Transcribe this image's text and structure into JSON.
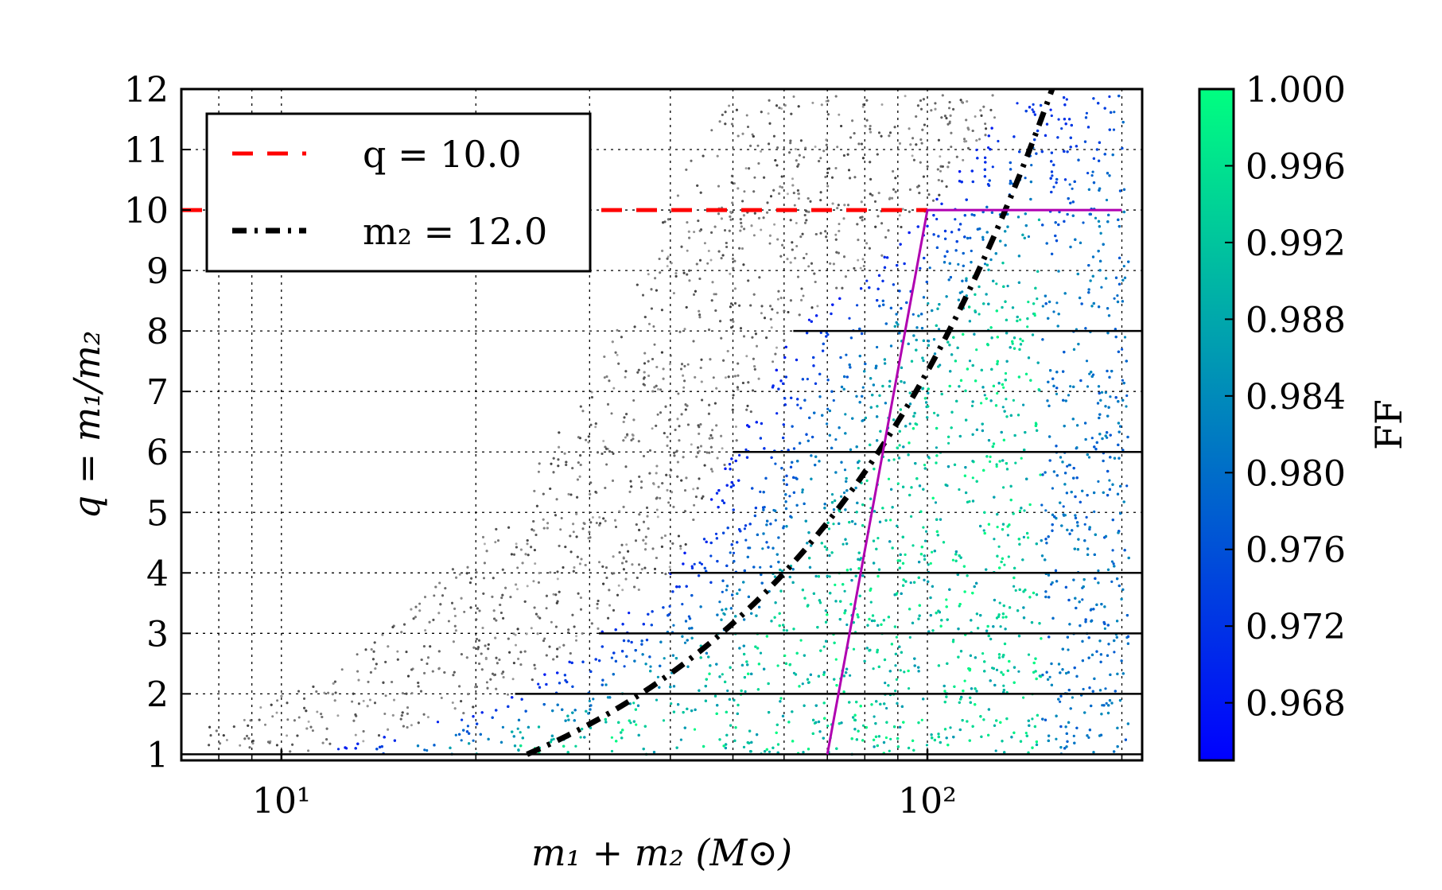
{
  "chart_data": {
    "type": "scatter",
    "title": "",
    "xlabel": "m₁ + m₂ (M⊙)",
    "ylabel": "q = m₁/m₂",
    "x_scale": "log",
    "xlim": [
      7,
      215
    ],
    "ylim": [
      0.9,
      12
    ],
    "x_ticks": [
      {
        "value": 10,
        "label": "10¹"
      },
      {
        "value": 100,
        "label": "10²"
      }
    ],
    "y_ticks": [
      1,
      2,
      3,
      4,
      5,
      6,
      7,
      8,
      9,
      10,
      11,
      12
    ],
    "grid": true,
    "legend": {
      "placement": "top-left",
      "entries": [
        {
          "label": "q = 10.0",
          "color": "#ff0000",
          "style": "dashed"
        },
        {
          "label": "m₂ = 12.0",
          "color": "#000000",
          "style": "dash-dot"
        }
      ]
    },
    "colorbar": {
      "label": "FF",
      "min": 0.965,
      "max": 1.0,
      "colormap": "winter",
      "colors": {
        "low": "#0000ff",
        "high": "#00ff80"
      },
      "ticks": [
        "1.000",
        "0.996",
        "0.992",
        "0.988",
        "0.984",
        "0.980",
        "0.976",
        "0.972",
        "0.968"
      ]
    },
    "reference_lines": [
      {
        "name": "q = 10.0",
        "type": "horizontal",
        "y": 10,
        "color": "#ff0000"
      },
      {
        "name": "m₂ = 12.0",
        "type": "curve",
        "m2": 12,
        "color": "#000000"
      },
      {
        "name": "boundary",
        "type": "polyline",
        "points": [
          [
            70,
            1
          ],
          [
            100,
            10
          ],
          [
            200,
            10
          ]
        ],
        "color": "#b000b0"
      }
    ],
    "tiling_lines": [
      {
        "q": 1,
        "x_start": 7
      },
      {
        "q": 2,
        "x_start": 23
      },
      {
        "q": 3,
        "x_start": 31
      },
      {
        "q": 4,
        "x_start": 40
      },
      {
        "q": 6,
        "x_start": 50
      },
      {
        "q": 8,
        "x_start": 62
      }
    ],
    "point_colors": {
      "rejected": "#505050"
    }
  }
}
